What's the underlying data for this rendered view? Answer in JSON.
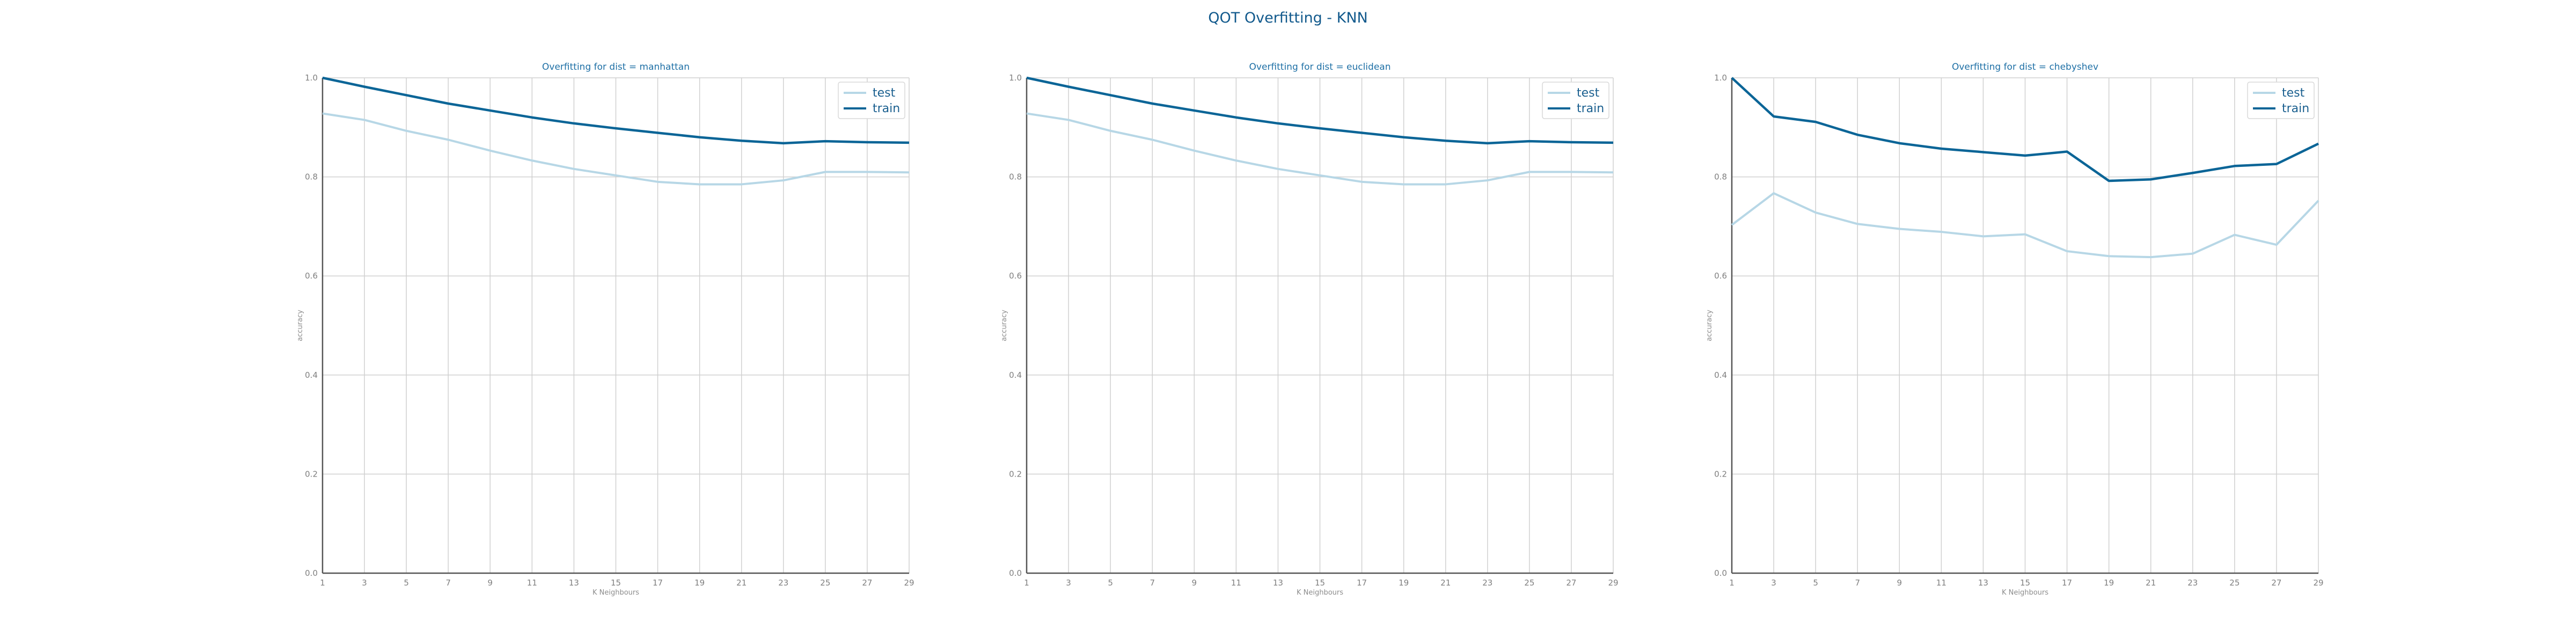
{
  "title": "QOT Overfitting - KNN",
  "colors": {
    "test": "#b7d7e6",
    "train": "#0b6597",
    "grid": "#d0d0d0",
    "axis": "#555555"
  },
  "chart_data": [
    {
      "type": "line",
      "title": "Overfitting for dist = manhattan",
      "xlabel": "K Neighbours",
      "ylabel": "accuracy",
      "x": [
        1,
        3,
        5,
        7,
        9,
        11,
        13,
        15,
        17,
        19,
        21,
        23,
        25,
        27,
        29
      ],
      "xticks": [
        "1",
        "3",
        "5",
        "7",
        "9",
        "11",
        "13",
        "15",
        "17",
        "19",
        "21",
        "23",
        "25",
        "27",
        "29"
      ],
      "ylim": [
        0,
        1
      ],
      "yticks": [
        "0.0",
        "0.2",
        "0.4",
        "0.6",
        "0.8",
        "1.0"
      ],
      "grid": true,
      "legend": "top-right",
      "series": [
        {
          "name": "test",
          "values": [
            0.928,
            0.915,
            0.893,
            0.875,
            0.853,
            0.833,
            0.816,
            0.803,
            0.79,
            0.785,
            0.785,
            0.793,
            0.81,
            0.81,
            0.809
          ]
        },
        {
          "name": "train",
          "values": [
            1.0,
            0.982,
            0.965,
            0.948,
            0.934,
            0.92,
            0.908,
            0.898,
            0.889,
            0.88,
            0.873,
            0.868,
            0.872,
            0.87,
            0.869
          ]
        }
      ]
    },
    {
      "type": "line",
      "title": "Overfitting for dist = euclidean",
      "xlabel": "K Neighbours",
      "ylabel": "accuracy",
      "x": [
        1,
        3,
        5,
        7,
        9,
        11,
        13,
        15,
        17,
        19,
        21,
        23,
        25,
        27,
        29
      ],
      "xticks": [
        "1",
        "3",
        "5",
        "7",
        "9",
        "11",
        "13",
        "15",
        "17",
        "19",
        "21",
        "23",
        "25",
        "27",
        "29"
      ],
      "ylim": [
        0,
        1
      ],
      "yticks": [
        "0.0",
        "0.2",
        "0.4",
        "0.6",
        "0.8",
        "1.0"
      ],
      "grid": true,
      "legend": "top-right",
      "series": [
        {
          "name": "test",
          "values": [
            0.928,
            0.915,
            0.893,
            0.875,
            0.853,
            0.833,
            0.816,
            0.803,
            0.79,
            0.785,
            0.785,
            0.793,
            0.81,
            0.81,
            0.809
          ]
        },
        {
          "name": "train",
          "values": [
            1.0,
            0.982,
            0.965,
            0.948,
            0.934,
            0.92,
            0.908,
            0.898,
            0.889,
            0.88,
            0.873,
            0.868,
            0.872,
            0.87,
            0.869
          ]
        }
      ]
    },
    {
      "type": "line",
      "title": "Overfitting for dist = chebyshev",
      "xlabel": "K Neighbours",
      "ylabel": "accuracy",
      "x": [
        1,
        3,
        5,
        7,
        9,
        11,
        13,
        15,
        17,
        19,
        21,
        23,
        25,
        27,
        29
      ],
      "xticks": [
        "1",
        "3",
        "5",
        "7",
        "9",
        "11",
        "13",
        "15",
        "17",
        "19",
        "21",
        "23",
        "25",
        "27",
        "29"
      ],
      "ylim": [
        0,
        1
      ],
      "yticks": [
        "0.0",
        "0.2",
        "0.4",
        "0.6",
        "0.8",
        "1.0"
      ],
      "grid": true,
      "legend": "top-right",
      "series": [
        {
          "name": "test",
          "values": [
            0.703,
            0.767,
            0.728,
            0.705,
            0.695,
            0.689,
            0.68,
            0.684,
            0.65,
            0.64,
            0.638,
            0.645,
            0.683,
            0.663,
            0.752
          ]
        },
        {
          "name": "train",
          "values": [
            1.0,
            0.922,
            0.911,
            0.885,
            0.868,
            0.857,
            0.85,
            0.843,
            0.851,
            0.792,
            0.795,
            0.808,
            0.822,
            0.826,
            0.867
          ]
        }
      ]
    }
  ]
}
